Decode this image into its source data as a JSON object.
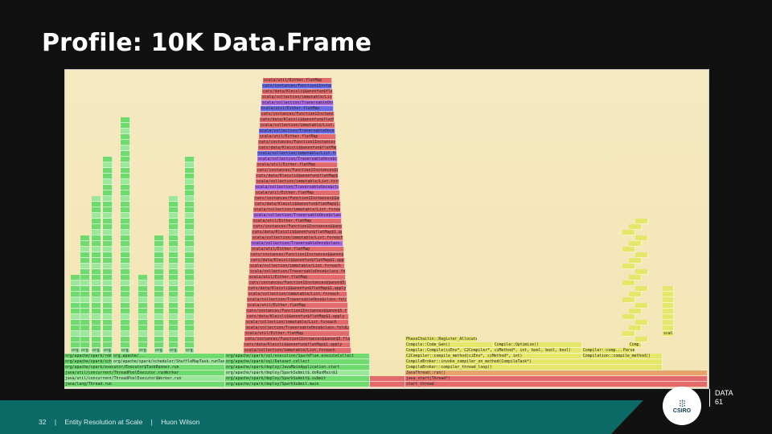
{
  "slide": {
    "title": "Profile: 10K Data.Frame",
    "footer": {
      "page": "32",
      "separator": "|",
      "talk": "Entity Resolution at Scale",
      "separator2": "|",
      "author": "Huon Wilson"
    },
    "logos": {
      "csiro_label": "CSIRO",
      "data61_label_top": "DATA",
      "data61_label_bottom": "61"
    }
  },
  "colors": {
    "green": "#6fdb6f",
    "lightgreen": "#9be89b",
    "red": "#e26a6a",
    "yellow": "#e6e66a",
    "orange": "#e6a46a",
    "blue": "#6a6ae6",
    "purple": "#b06ae6",
    "tan": "#f3e5b4",
    "footer_teal": "#0b6a66"
  },
  "flamegraph": {
    "bottom_labels": [
      {
        "id": "l1",
        "text": "java/lang/Thread.run"
      },
      {
        "id": "l2",
        "text": "java/util/concurrent/ThreadPoolExecutor$Worker.run"
      },
      {
        "id": "l3",
        "text": "java/util/concurrent/ThreadPoolExecutor.runWorker"
      },
      {
        "id": "l4",
        "text": "org/apache/spark/executor/Executor$TaskRunner.run"
      },
      {
        "id": "l5",
        "text": "org/apache/spark/deploy/SparkSubmit.main"
      },
      {
        "id": "l6",
        "text": "org/apache/spark/deploy/SparkSubmit$.submit"
      },
      {
        "id": "l7",
        "text": "org/apache/spark/deploy/SparkSubmit$.doRunMain$1"
      },
      {
        "id": "l8",
        "text": "org/apache/spark/deploy/JavaMainApplication.start"
      },
      {
        "id": "l9",
        "text": "start_thread"
      },
      {
        "id": "l10",
        "text": "java_start(Thread*)"
      },
      {
        "id": "l11",
        "text": "JavaThread::run()"
      },
      {
        "id": "l12",
        "text": "CompileBroker::compiler_thread_loop()"
      },
      {
        "id": "l13",
        "text": "CompileBroker::invoke_compiler_on_method(CompileTask*)"
      },
      {
        "id": "l14",
        "text": "C2Compiler::compile_method(ciEnv*, ciMethod*, int)"
      },
      {
        "id": "l15",
        "text": "Compile::Compile(ciEnv*, C2Compiler*, ciMethod*, int, bool, bool, bool)"
      },
      {
        "id": "l16",
        "text": "Compile::Code_Gen()"
      },
      {
        "id": "l17",
        "text": "Compile::Optimize()"
      },
      {
        "id": "l18",
        "text": "PhaseChaitin::Register_Allocate()"
      },
      {
        "id": "l19",
        "text": "Compilation::compile_method()"
      },
      {
        "id": "l20",
        "text": "Compiler::comp..."
      },
      {
        "id": "l21",
        "text": "scala/collection/TraversableOnce$class.foldLeft"
      },
      {
        "id": "l22",
        "text": "scala/collection/immutable/List.foreach"
      },
      {
        "id": "l23",
        "text": "cats/data/Kleisli$$anonfun$flatMap$1.apply"
      },
      {
        "id": "l24",
        "text": "cats/instances/Function1Instances$$anon$5.flatMap"
      },
      {
        "id": "l25",
        "text": "scala/util/Either.flatMap"
      },
      {
        "id": "l26",
        "text": "org/apache/spark/sql/Dataset.collect"
      },
      {
        "id": "l27",
        "text": "org/apache/spark/sql/execution/SparkPlan.executeCollect"
      },
      {
        "id": "l28",
        "text": "org/apache/spark/scheduler/ShuffleMapTask.runTask"
      },
      {
        "id": "l29",
        "text": "org/apache/spark/scheduler/ResultTask.runTask"
      },
      {
        "id": "l30",
        "text": "org/apache/spark/rdd/RDD.iterator"
      },
      {
        "id": "l31",
        "text": "Parse..."
      },
      {
        "id": "l32",
        "text": "Comp..."
      },
      {
        "id": "l33",
        "text": "org.apache/..."
      },
      {
        "id": "l34",
        "text": "org.apac..."
      },
      {
        "id": "l35",
        "text": "scala/..."
      }
    ]
  }
}
